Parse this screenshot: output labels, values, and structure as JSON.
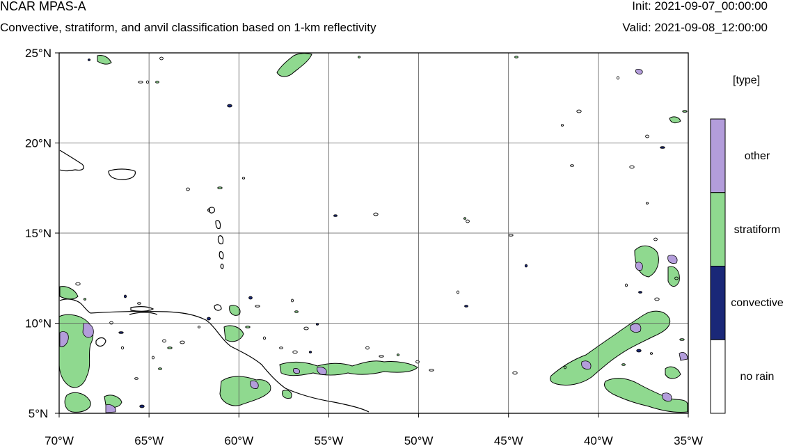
{
  "header": {
    "title": "NCAR MPAS-A",
    "subtitle": "Convective, stratiform, and anvil classification based on 1-km reflectivity",
    "init": "Init: 2021-09-07_00:00:00",
    "valid": "Valid: 2021-09-08_12:00:00"
  },
  "map": {
    "lon_range": [
      -70,
      -35
    ],
    "lat_range": [
      5,
      25
    ],
    "grid": true,
    "x_ticks": [
      {
        "value": -70,
        "label": "70°W"
      },
      {
        "value": -65,
        "label": "65°W"
      },
      {
        "value": -60,
        "label": "60°W"
      },
      {
        "value": -55,
        "label": "55°W"
      },
      {
        "value": -50,
        "label": "50°W"
      },
      {
        "value": -45,
        "label": "45°W"
      },
      {
        "value": -40,
        "label": "40°W"
      },
      {
        "value": -35,
        "label": "35°W"
      }
    ],
    "y_ticks": [
      {
        "value": 5,
        "label": "5°N"
      },
      {
        "value": 10,
        "label": "10°N"
      },
      {
        "value": 15,
        "label": "15°N"
      },
      {
        "value": 20,
        "label": "20°N"
      },
      {
        "value": 25,
        "label": "25°N"
      }
    ]
  },
  "colorbar": {
    "title": "[type]",
    "categories": [
      {
        "label": "other",
        "color": "#b39ddb"
      },
      {
        "label": "stratiform",
        "color": "#8fd98f"
      },
      {
        "label": "convective",
        "color": "#1a2878"
      },
      {
        "label": "no rain",
        "color": "#ffffff"
      }
    ]
  },
  "colors": {
    "stratiform": "#8fd98f",
    "other": "#b39ddb",
    "convective": "#1a2878",
    "coast": "#000000",
    "grid": "#555555"
  }
}
